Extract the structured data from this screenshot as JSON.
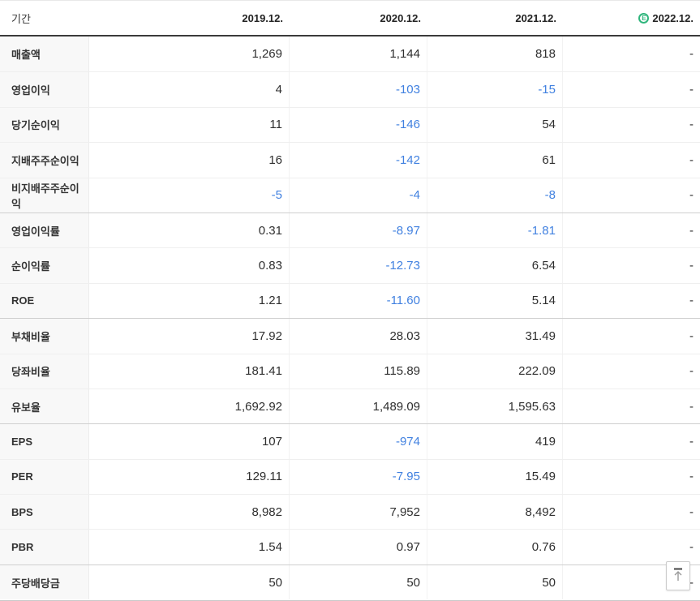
{
  "table": {
    "period_label": "기간",
    "columns": [
      {
        "label": "2019.12.",
        "estimate": false
      },
      {
        "label": "2020.12.",
        "estimate": false
      },
      {
        "label": "2021.12.",
        "estimate": false
      },
      {
        "label": "2022.12.",
        "estimate": true
      }
    ],
    "estimate_badge": "E",
    "rows": [
      {
        "label": "매출액",
        "values": [
          "1,269",
          "1,144",
          "818",
          "-"
        ],
        "group_start": false
      },
      {
        "label": "영업이익",
        "values": [
          "4",
          "-103",
          "-15",
          "-"
        ],
        "group_start": false
      },
      {
        "label": "당기순이익",
        "values": [
          "11",
          "-146",
          "54",
          "-"
        ],
        "group_start": false
      },
      {
        "label": "지배주주순이익",
        "values": [
          "16",
          "-142",
          "61",
          "-"
        ],
        "group_start": false
      },
      {
        "label": "비지배주주순이익",
        "values": [
          "-5",
          "-4",
          "-8",
          "-"
        ],
        "group_start": false
      },
      {
        "label": "영업이익률",
        "values": [
          "0.31",
          "-8.97",
          "-1.81",
          "-"
        ],
        "group_start": true
      },
      {
        "label": "순이익률",
        "values": [
          "0.83",
          "-12.73",
          "6.54",
          "-"
        ],
        "group_start": false
      },
      {
        "label": "ROE",
        "values": [
          "1.21",
          "-11.60",
          "5.14",
          "-"
        ],
        "group_start": false
      },
      {
        "label": "부채비율",
        "values": [
          "17.92",
          "28.03",
          "31.49",
          "-"
        ],
        "group_start": true
      },
      {
        "label": "당좌비율",
        "values": [
          "181.41",
          "115.89",
          "222.09",
          "-"
        ],
        "group_start": false
      },
      {
        "label": "유보율",
        "values": [
          "1,692.92",
          "1,489.09",
          "1,595.63",
          "-"
        ],
        "group_start": false
      },
      {
        "label": "EPS",
        "values": [
          "107",
          "-974",
          "419",
          "-"
        ],
        "group_start": true
      },
      {
        "label": "PER",
        "values": [
          "129.11",
          "-7.95",
          "15.49",
          "-"
        ],
        "group_start": false
      },
      {
        "label": "BPS",
        "values": [
          "8,982",
          "7,952",
          "8,492",
          "-"
        ],
        "group_start": false
      },
      {
        "label": "PBR",
        "values": [
          "1.54",
          "0.97",
          "0.76",
          "-"
        ],
        "group_start": false
      },
      {
        "label": "주당배당금",
        "values": [
          "50",
          "50",
          "50",
          "-"
        ],
        "group_start": true
      }
    ]
  },
  "colors": {
    "negative_value": "#4181e0",
    "positive_value": "#2f2f2f",
    "estimate_green": "#2fb57c"
  },
  "scroll_top_button": {
    "icon": "arrow-up-to-top"
  }
}
